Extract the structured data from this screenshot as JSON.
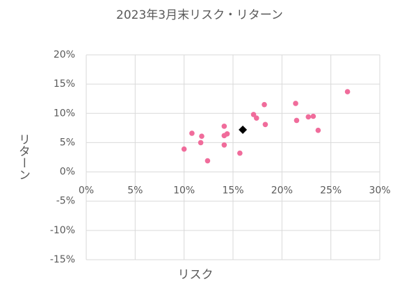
{
  "chart_data": {
    "type": "scatter",
    "title": "2023年3月末リスク・リターン",
    "x_label": "リスク",
    "y_label": "リターン",
    "series": [
      {
        "color": "#f06c9b",
        "marker": "circle",
        "x": [
          10.0,
          10.8,
          11.8,
          11.7,
          12.4,
          14.1,
          14.1,
          14.4,
          14.1,
          15.7,
          17.1,
          17.4,
          18.2,
          18.3,
          21.4,
          21.5,
          22.7,
          23.2,
          23.7,
          26.7
        ],
        "values": [
          3.9,
          6.6,
          6.1,
          5.0,
          1.9,
          7.8,
          6.2,
          6.5,
          4.6,
          3.2,
          9.8,
          9.2,
          11.5,
          8.1,
          11.7,
          8.8,
          9.4,
          9.5,
          7.1,
          13.7
        ]
      },
      {
        "color": "#000000",
        "marker": "diamond",
        "x": [
          16.0
        ],
        "values": [
          7.2
        ]
      }
    ],
    "xlim": [
      0,
      30
    ],
    "ylim": [
      -15,
      20
    ],
    "xticks": [
      {
        "value": 0,
        "label": "0%"
      },
      {
        "value": 5,
        "label": "5%"
      },
      {
        "value": 10,
        "label": "10%"
      },
      {
        "value": 15,
        "label": "15%"
      },
      {
        "value": 20,
        "label": "20%"
      },
      {
        "value": 25,
        "label": "25%"
      },
      {
        "value": 30,
        "label": "30%"
      }
    ],
    "yticks": [
      {
        "value": -15,
        "label": "-15%"
      },
      {
        "value": -10,
        "label": "-10%"
      },
      {
        "value": -5,
        "label": "-5%"
      },
      {
        "value": 0,
        "label": "0%"
      },
      {
        "value": 5,
        "label": "5%"
      },
      {
        "value": 10,
        "label": "10%"
      },
      {
        "value": 15,
        "label": "15%"
      },
      {
        "value": 20,
        "label": "20%"
      }
    ],
    "grid": true
  }
}
